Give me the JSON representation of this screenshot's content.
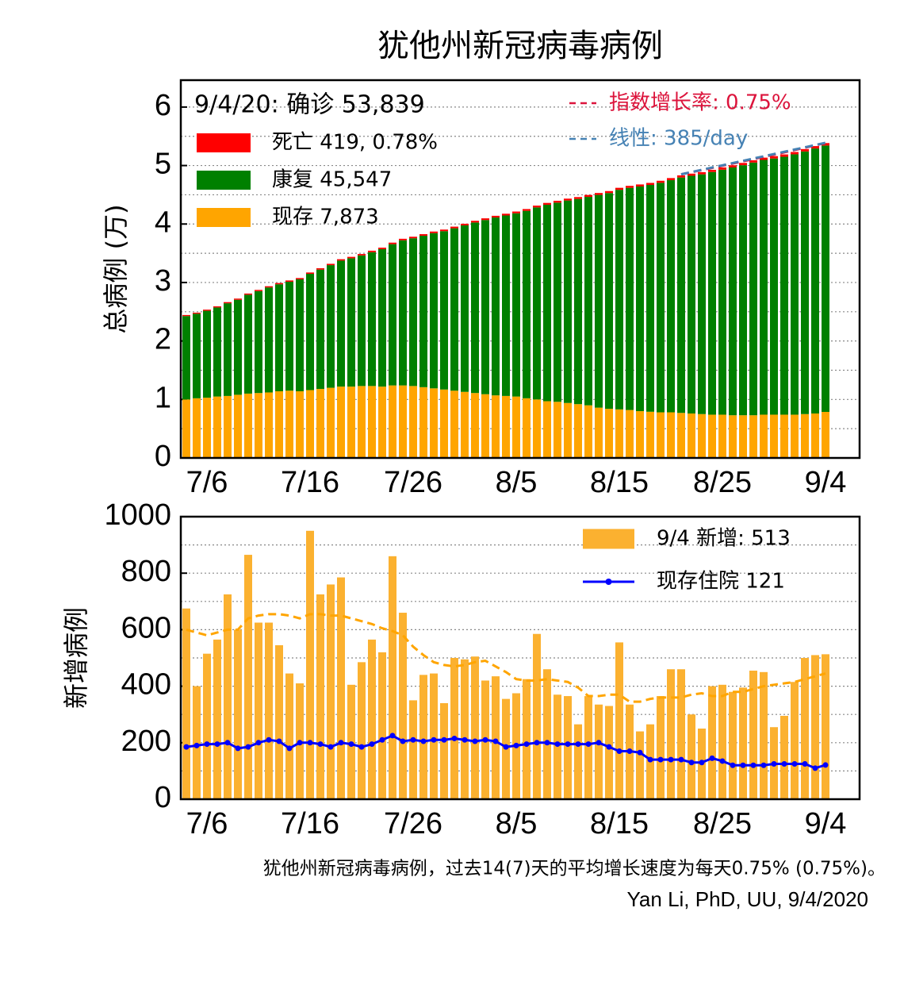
{
  "chart_data": [
    {
      "type": "bar",
      "stacked": true,
      "title": "犹他州新冠病毒病例",
      "ylabel": "总病例 (万)",
      "annotation": "9/4/20: 确诊 53,839",
      "categories": [
        null,
        null,
        "7/6",
        null,
        null,
        null,
        null,
        null,
        null,
        null,
        null,
        null,
        "7/16",
        null,
        null,
        null,
        null,
        null,
        null,
        null,
        null,
        null,
        "7/26",
        null,
        null,
        null,
        null,
        null,
        null,
        null,
        null,
        null,
        "8/5",
        null,
        null,
        null,
        null,
        null,
        null,
        null,
        null,
        null,
        "8/15",
        null,
        null,
        null,
        null,
        null,
        null,
        null,
        null,
        null,
        "8/25",
        null,
        null,
        null,
        null,
        null,
        null,
        null,
        null,
        null,
        "9/4"
      ],
      "ylim": [
        0,
        6.46
      ],
      "yticks": [
        0,
        1,
        2,
        3,
        4,
        5,
        6
      ],
      "yticks_minor": [
        0.5,
        1.5,
        2.5,
        3.5,
        4.5,
        5.5
      ],
      "grid": true,
      "series": [
        {
          "name": "死亡 419, 0.78%",
          "kind": "bar",
          "color": "#ff0000",
          "values": [
            0.018,
            0.018,
            0.019,
            0.019,
            0.02,
            0.02,
            0.02,
            0.021,
            0.021,
            0.021,
            0.022,
            0.022,
            0.023,
            0.023,
            0.023,
            0.024,
            0.024,
            0.024,
            0.025,
            0.025,
            0.026,
            0.026,
            0.026,
            0.027,
            0.027,
            0.027,
            0.028,
            0.028,
            0.029,
            0.029,
            0.029,
            0.03,
            0.03,
            0.031,
            0.031,
            0.031,
            0.032,
            0.032,
            0.032,
            0.033,
            0.033,
            0.034,
            0.034,
            0.034,
            0.035,
            0.035,
            0.035,
            0.036,
            0.036,
            0.037,
            0.037,
            0.037,
            0.038,
            0.038,
            0.039,
            0.039,
            0.039,
            0.04,
            0.04,
            0.04,
            0.041,
            0.041,
            0.0419
          ]
        },
        {
          "name": "康复 45,547",
          "kind": "bar",
          "color": "#008000",
          "values": [
            1.4261,
            1.4461,
            1.4866,
            1.5231,
            1.5846,
            1.6246,
            1.6911,
            1.7426,
            1.7951,
            1.8296,
            1.8631,
            1.9141,
            1.9881,
            2.0406,
            2.0966,
            2.1541,
            2.1946,
            2.2331,
            2.2886,
            2.3506,
            2.4156,
            2.4816,
            2.5266,
            2.5896,
            2.6541,
            2.7081,
            2.7771,
            2.8466,
            2.9161,
            2.9781,
            3.0416,
            3.0861,
            3.1336,
            3.2051,
            3.2836,
            3.3596,
            3.4056,
            3.4621,
            3.5086,
            3.5641,
            3.6376,
            3.6896,
            3.7551,
            3.7986,
            3.8416,
            3.8781,
            3.9246,
            3.9696,
            4.0256,
            4.0646,
            4.0996,
            4.1496,
            4.1891,
            4.2371,
            4.2756,
            4.3211,
            4.3561,
            4.3806,
            4.4101,
            4.4516,
            4.4906,
            4.5316,
            4.5547
          ]
        },
        {
          "name": "现存 7,873",
          "kind": "bar",
          "color": "#ffa500",
          "values": [
            1.0,
            1.02,
            1.03,
            1.05,
            1.06,
            1.08,
            1.1,
            1.11,
            1.12,
            1.14,
            1.15,
            1.14,
            1.16,
            1.18,
            1.2,
            1.22,
            1.22,
            1.23,
            1.23,
            1.22,
            1.24,
            1.24,
            1.23,
            1.21,
            1.19,
            1.17,
            1.15,
            1.13,
            1.11,
            1.09,
            1.07,
            1.06,
            1.05,
            1.02,
            1.0,
            0.97,
            0.96,
            0.94,
            0.92,
            0.9,
            0.86,
            0.84,
            0.83,
            0.82,
            0.8,
            0.79,
            0.78,
            0.78,
            0.77,
            0.76,
            0.75,
            0.74,
            0.74,
            0.73,
            0.73,
            0.73,
            0.74,
            0.74,
            0.74,
            0.74,
            0.75,
            0.76,
            0.7873
          ]
        },
        {
          "name": "指数增长率: 0.75%",
          "kind": "line",
          "dash": true,
          "color": "#dc143c",
          "values": [
            null,
            null,
            null,
            null,
            null,
            null,
            null,
            null,
            null,
            null,
            null,
            null,
            null,
            null,
            null,
            null,
            null,
            null,
            null,
            null,
            null,
            null,
            null,
            null,
            null,
            null,
            null,
            null,
            null,
            null,
            null,
            null,
            null,
            null,
            null,
            null,
            null,
            null,
            null,
            null,
            null,
            null,
            null,
            null,
            null,
            null,
            null,
            null,
            4.85,
            4.886,
            4.923,
            4.96,
            4.997,
            5.035,
            5.072,
            5.11,
            5.149,
            5.187,
            5.226,
            5.265,
            5.305,
            5.345,
            5.385
          ]
        },
        {
          "name": "线性: 385/day",
          "kind": "line",
          "dash": true,
          "color": "#4682b4",
          "values": [
            null,
            null,
            null,
            null,
            null,
            null,
            null,
            null,
            null,
            null,
            null,
            null,
            null,
            null,
            null,
            null,
            null,
            null,
            null,
            null,
            null,
            null,
            null,
            null,
            null,
            null,
            null,
            null,
            null,
            null,
            null,
            null,
            null,
            null,
            null,
            null,
            null,
            null,
            null,
            null,
            null,
            null,
            null,
            null,
            null,
            null,
            null,
            null,
            4.85,
            4.889,
            4.927,
            4.966,
            5.004,
            5.043,
            5.081,
            5.12,
            5.158,
            5.197,
            5.235,
            5.274,
            5.312,
            5.351,
            5.389
          ]
        }
      ]
    },
    {
      "type": "bar",
      "stacked": false,
      "ylabel": "新增病例",
      "categories": [
        null,
        null,
        "7/6",
        null,
        null,
        null,
        null,
        null,
        null,
        null,
        null,
        null,
        "7/16",
        null,
        null,
        null,
        null,
        null,
        null,
        null,
        null,
        null,
        "7/26",
        null,
        null,
        null,
        null,
        null,
        null,
        null,
        null,
        null,
        "8/5",
        null,
        null,
        null,
        null,
        null,
        null,
        null,
        null,
        null,
        "8/15",
        null,
        null,
        null,
        null,
        null,
        null,
        null,
        null,
        null,
        "8/25",
        null,
        null,
        null,
        null,
        null,
        null,
        null,
        null,
        null,
        "9/4"
      ],
      "ylim": [
        0,
        1000
      ],
      "yticks": [
        0,
        200,
        400,
        600,
        800,
        1000
      ],
      "yticks_minor": [
        100,
        300,
        500,
        700,
        900
      ],
      "grid": true,
      "series": [
        {
          "name": "9/4 新增: 513",
          "kind": "bar",
          "color": "#fbb130",
          "values": [
            675,
            400,
            515,
            565,
            725,
            600,
            865,
            625,
            625,
            545,
            445,
            410,
            950,
            725,
            760,
            785,
            405,
            485,
            565,
            520,
            860,
            660,
            350,
            440,
            445,
            340,
            500,
            495,
            505,
            420,
            435,
            355,
            375,
            425,
            585,
            460,
            370,
            365,
            265,
            365,
            335,
            330,
            555,
            335,
            240,
            265,
            365,
            460,
            460,
            300,
            250,
            400,
            405,
            380,
            395,
            455,
            450,
            255,
            295,
            415,
            500,
            510,
            513
          ]
        },
        {
          "kind": "line",
          "dash": true,
          "color": "#ffa500",
          "values": [
            600,
            590,
            580,
            590,
            600,
            600,
            640,
            650,
            655,
            655,
            650,
            640,
            655,
            655,
            650,
            650,
            640,
            630,
            620,
            605,
            595,
            580,
            540,
            510,
            485,
            475,
            470,
            475,
            485,
            490,
            470,
            450,
            425,
            420,
            420,
            425,
            420,
            415,
            395,
            365,
            365,
            370,
            370,
            345,
            345,
            355,
            360,
            360,
            360,
            370,
            375,
            365,
            365,
            380,
            380,
            390,
            400,
            405,
            410,
            415,
            425,
            435,
            445
          ]
        },
        {
          "name": "现存住院 121",
          "kind": "line",
          "marker": true,
          "color": "#0000ff",
          "values": [
            185,
            190,
            195,
            195,
            200,
            180,
            185,
            200,
            210,
            205,
            180,
            200,
            200,
            195,
            185,
            200,
            195,
            185,
            195,
            210,
            225,
            205,
            210,
            205,
            210,
            210,
            215,
            210,
            205,
            210,
            205,
            185,
            190,
            195,
            200,
            200,
            195,
            195,
            195,
            195,
            200,
            185,
            170,
            170,
            165,
            140,
            140,
            140,
            140,
            130,
            130,
            145,
            135,
            120,
            120,
            120,
            120,
            125,
            125,
            125,
            125,
            110,
            121
          ]
        }
      ]
    }
  ],
  "footer": {
    "note": "犹他州新冠病毒病例，过去14(7)天的平均增长速度为每天0.75% (0.75%)。",
    "credit": "Yan Li, PhD, UU, 9/4/2020"
  }
}
